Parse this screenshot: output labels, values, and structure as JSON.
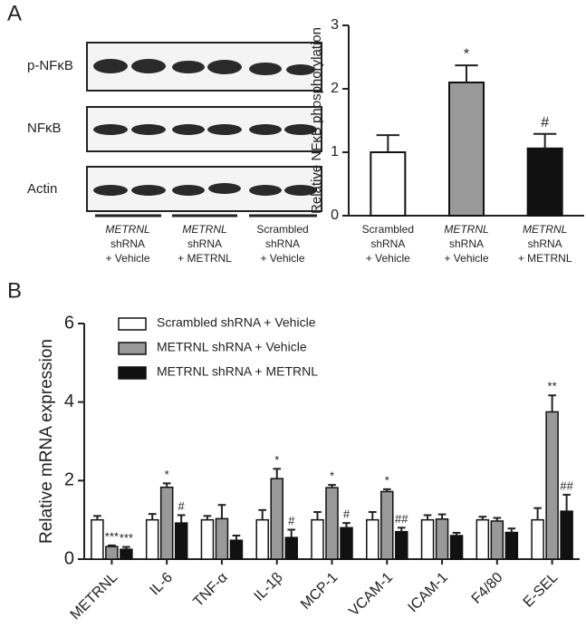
{
  "panels": [
    "A",
    "B"
  ],
  "blot": {
    "rows": [
      "p-NFκB",
      "NFκB",
      "Actin"
    ],
    "groups": [
      [
        "METRNL",
        "shRNA",
        "+ Vehicle"
      ],
      [
        "METRNL",
        "shRNA",
        "+ METRNL"
      ],
      [
        "Scrambled",
        "shRNA",
        "+ Vehicle"
      ]
    ]
  },
  "chart_data": [
    {
      "type": "bar",
      "y_label": "Relative NFκB phosphorylation",
      "categories": [
        [
          "Scrambled",
          "shRNA",
          "+ Vehicle"
        ],
        [
          "METRNL",
          "shRNA",
          "+ Vehicle"
        ],
        [
          "METRNL",
          "shRNA",
          "+ METRNL"
        ]
      ],
      "values": [
        1.0,
        2.1,
        1.06
      ],
      "errors": [
        0.27,
        0.27,
        0.23
      ],
      "colors": [
        "#ffffff",
        "#999999",
        "#111111"
      ],
      "annotations": [
        null,
        "*",
        "#"
      ],
      "ylim": [
        0,
        3
      ],
      "yticks": [
        0,
        1,
        2,
        3
      ]
    },
    {
      "type": "grouped_bar",
      "y_label": "Relative mRNA expression",
      "categories": [
        "METRNL",
        "IL-6",
        "TNF-α",
        "IL-1β",
        "MCP-1",
        "VCAM-1",
        "ICAM-1",
        "F4/80",
        "E-SEL"
      ],
      "series": [
        {
          "name": "Scrambled shRNA + Vehicle",
          "color": "#ffffff",
          "values": [
            1,
            1,
            1,
            1,
            1,
            1,
            1,
            1,
            1
          ],
          "errors": [
            0.1,
            0.15,
            0.1,
            0.25,
            0.2,
            0.2,
            0.12,
            0.08,
            0.3
          ],
          "annotations": [
            null,
            null,
            null,
            null,
            null,
            null,
            null,
            null,
            null
          ]
        },
        {
          "name": "METRNL shRNA + Vehicle",
          "color": "#999999",
          "values": [
            0.32,
            1.83,
            1.03,
            2.05,
            1.82,
            1.72,
            1.02,
            0.97,
            3.75
          ],
          "errors": [
            0.03,
            0.1,
            0.35,
            0.25,
            0.07,
            0.06,
            0.12,
            0.08,
            0.42
          ],
          "annotations": [
            "***",
            "*",
            null,
            "*",
            "*",
            "*",
            null,
            null,
            "**"
          ]
        },
        {
          "name": "METRNL shRNA + METRNL",
          "color": "#111111",
          "values": [
            0.25,
            0.92,
            0.48,
            0.55,
            0.8,
            0.7,
            0.6,
            0.68,
            1.22
          ],
          "errors": [
            0.06,
            0.2,
            0.12,
            0.2,
            0.12,
            0.1,
            0.07,
            0.1,
            0.42
          ],
          "annotations": [
            "***",
            "#",
            null,
            "#",
            "#",
            "##",
            null,
            null,
            "##"
          ]
        }
      ],
      "legend": "upper left",
      "ylim": [
        0,
        6
      ],
      "yticks": [
        0,
        2,
        4,
        6
      ]
    }
  ]
}
